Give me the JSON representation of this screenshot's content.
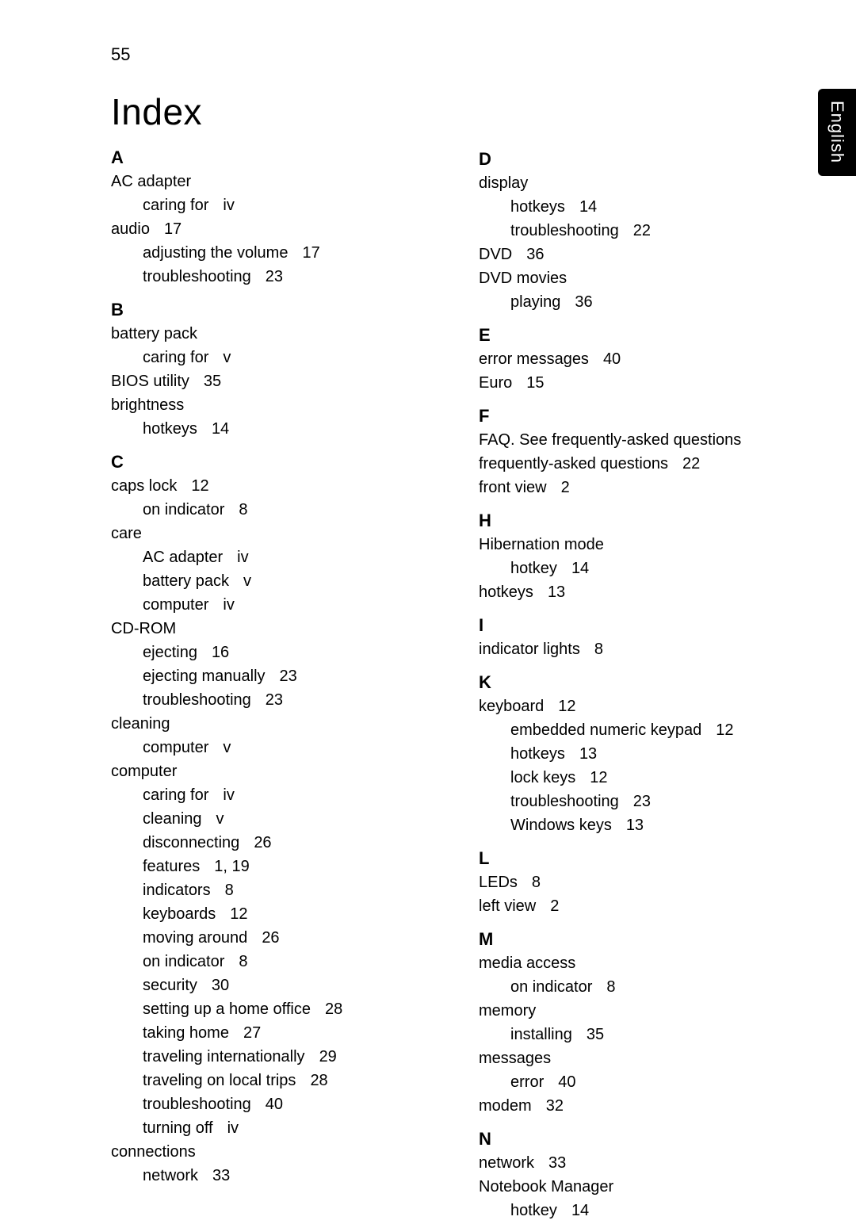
{
  "page_number": "55",
  "title": "Index",
  "language_tab": "English",
  "colors": {
    "bg": "#ffffff",
    "text": "#000000",
    "tab_bg": "#000000",
    "tab_text": "#ffffff"
  },
  "typography": {
    "title_fontsize": 46,
    "letter_fontsize": 22,
    "entry_fontsize": 20,
    "page_num_fontsize": 22
  },
  "left_sections": [
    {
      "letter": "A",
      "entries": [
        {
          "text": "AC adapter",
          "page": "",
          "subs": [
            {
              "text": "caring for",
              "page": "iv"
            }
          ]
        },
        {
          "text": "audio",
          "page": "17",
          "subs": [
            {
              "text": "adjusting the volume",
              "page": "17"
            },
            {
              "text": "troubleshooting",
              "page": "23"
            }
          ]
        }
      ]
    },
    {
      "letter": "B",
      "entries": [
        {
          "text": "battery pack",
          "page": "",
          "subs": [
            {
              "text": "caring for",
              "page": "v"
            }
          ]
        },
        {
          "text": "BIOS utility",
          "page": "35",
          "subs": []
        },
        {
          "text": "brightness",
          "page": "",
          "subs": [
            {
              "text": "hotkeys",
              "page": "14"
            }
          ]
        }
      ]
    },
    {
      "letter": "C",
      "entries": [
        {
          "text": "caps lock",
          "page": "12",
          "subs": [
            {
              "text": "on indicator",
              "page": "8"
            }
          ]
        },
        {
          "text": "care",
          "page": "",
          "subs": [
            {
              "text": "AC adapter",
              "page": "iv"
            },
            {
              "text": "battery pack",
              "page": "v"
            },
            {
              "text": "computer",
              "page": "iv"
            }
          ]
        },
        {
          "text": "CD-ROM",
          "page": "",
          "subs": [
            {
              "text": "ejecting",
              "page": "16"
            },
            {
              "text": "ejecting manually",
              "page": "23"
            },
            {
              "text": "troubleshooting",
              "page": "23"
            }
          ]
        },
        {
          "text": "cleaning",
          "page": "",
          "subs": [
            {
              "text": "computer",
              "page": "v"
            }
          ]
        },
        {
          "text": "computer",
          "page": "",
          "subs": [
            {
              "text": "caring for",
              "page": "iv"
            },
            {
              "text": "cleaning",
              "page": "v"
            },
            {
              "text": "disconnecting",
              "page": "26"
            },
            {
              "text": "features",
              "page": "1,     19"
            },
            {
              "text": "indicators",
              "page": "8"
            },
            {
              "text": "keyboards",
              "page": "12"
            },
            {
              "text": "moving around",
              "page": "26"
            },
            {
              "text": "on indicator",
              "page": "8"
            },
            {
              "text": "security",
              "page": "30"
            },
            {
              "text": "setting up a home office",
              "page": "28"
            },
            {
              "text": "taking home",
              "page": "27"
            },
            {
              "text": "traveling internationally",
              "page": "29"
            },
            {
              "text": "traveling on local trips",
              "page": "28"
            },
            {
              "text": "troubleshooting",
              "page": "40"
            },
            {
              "text": "turning off",
              "page": "iv"
            }
          ]
        },
        {
          "text": "connections",
          "page": "",
          "subs": [
            {
              "text": "network",
              "page": "33"
            }
          ]
        }
      ]
    }
  ],
  "right_sections": [
    {
      "letter": "D",
      "entries": [
        {
          "text": "display",
          "page": "",
          "subs": [
            {
              "text": "hotkeys",
              "page": "14"
            },
            {
              "text": "troubleshooting",
              "page": "22"
            }
          ]
        },
        {
          "text": "DVD",
          "page": "36",
          "subs": []
        },
        {
          "text": "DVD movies",
          "page": "",
          "subs": [
            {
              "text": "playing",
              "page": "36"
            }
          ]
        }
      ]
    },
    {
      "letter": "E",
      "entries": [
        {
          "text": "error messages",
          "page": "40",
          "subs": []
        },
        {
          "text": "Euro",
          "page": "15",
          "subs": []
        }
      ]
    },
    {
      "letter": "F",
      "entries": [
        {
          "text": "FAQ. See frequently-asked questions",
          "page": "",
          "subs": []
        },
        {
          "text": "frequently-asked questions",
          "page": "22",
          "subs": []
        },
        {
          "text": "front view",
          "page": "2",
          "subs": []
        }
      ]
    },
    {
      "letter": "H",
      "entries": [
        {
          "text": "Hibernation mode",
          "page": "",
          "subs": [
            {
              "text": "hotkey",
              "page": "14"
            }
          ]
        },
        {
          "text": "hotkeys",
          "page": "13",
          "subs": []
        }
      ]
    },
    {
      "letter": "I",
      "entries": [
        {
          "text": "indicator lights",
          "page": "8",
          "subs": []
        }
      ]
    },
    {
      "letter": "K",
      "entries": [
        {
          "text": "keyboard",
          "page": "12",
          "subs": [
            {
              "text": "embedded numeric keypad",
              "page": "12"
            },
            {
              "text": "hotkeys",
              "page": "13"
            },
            {
              "text": "lock keys",
              "page": "12"
            },
            {
              "text": "troubleshooting",
              "page": "23"
            },
            {
              "text": "Windows keys",
              "page": "13"
            }
          ]
        }
      ]
    },
    {
      "letter": "L",
      "entries": [
        {
          "text": "LEDs",
          "page": "8",
          "subs": []
        },
        {
          "text": "left view",
          "page": "2",
          "subs": []
        }
      ]
    },
    {
      "letter": "M",
      "entries": [
        {
          "text": "media access",
          "page": "",
          "subs": [
            {
              "text": "on indicator",
              "page": "8"
            }
          ]
        },
        {
          "text": "memory",
          "page": "",
          "subs": [
            {
              "text": "installing",
              "page": "35"
            }
          ]
        },
        {
          "text": "messages",
          "page": "",
          "subs": [
            {
              "text": "error",
              "page": "40"
            }
          ]
        },
        {
          "text": "modem",
          "page": "32",
          "subs": []
        }
      ]
    },
    {
      "letter": "N",
      "entries": [
        {
          "text": "network",
          "page": "33",
          "subs": []
        },
        {
          "text": "Notebook Manager",
          "page": "",
          "subs": [
            {
              "text": "hotkey",
              "page": "14"
            }
          ]
        }
      ]
    }
  ]
}
